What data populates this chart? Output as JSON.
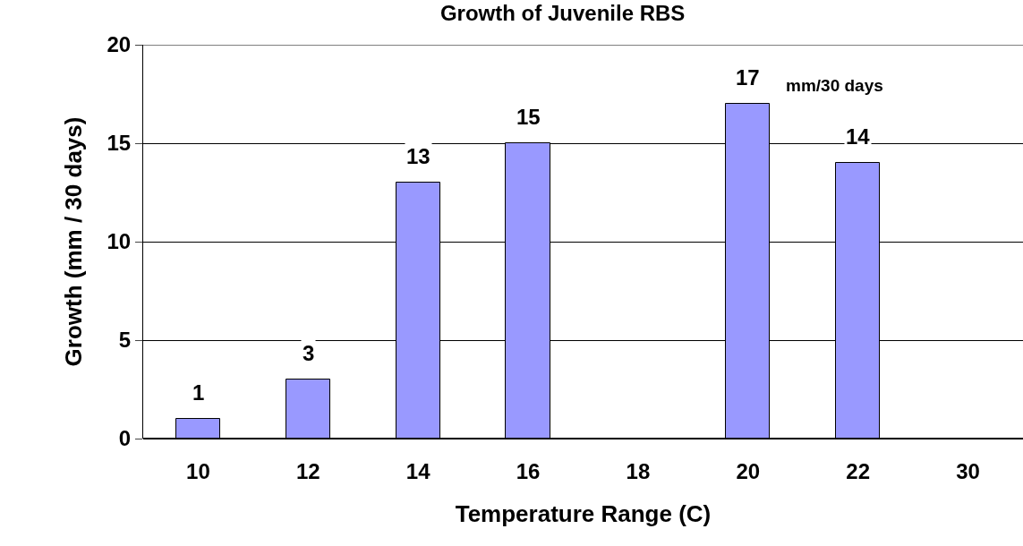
{
  "chart_data": {
    "type": "bar",
    "title": "Growth of Juvenile RBS",
    "xlabel": "Temperature Range (C)",
    "ylabel": "Growth (mm / 30 days)",
    "categories": [
      "10",
      "12",
      "14",
      "16",
      "18",
      "20",
      "22",
      "30"
    ],
    "values": [
      1,
      3,
      13,
      15,
      null,
      17,
      14,
      null
    ],
    "color": "#9999ff",
    "data_labels": true,
    "annotations": [
      {
        "text": "mm/30 days",
        "x": "20",
        "y": 17
      }
    ],
    "ylim": [
      0,
      20
    ],
    "yticks": [
      0,
      5,
      10,
      15,
      20
    ],
    "grid": "y",
    "legend": false
  }
}
